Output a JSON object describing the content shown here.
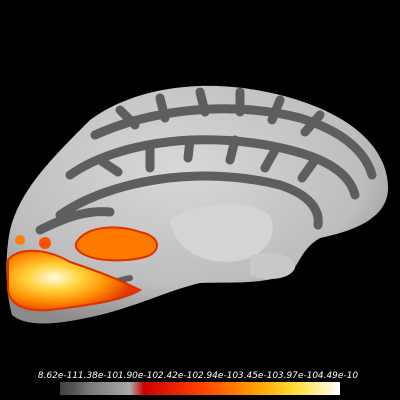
{
  "colorbar": {
    "ticks": [
      "8.62e-11",
      "1.38e-10",
      "1.90e-10",
      "2.42e-10",
      "2.94e-10",
      "3.45e-10",
      "3.97e-10",
      "4.49e-10"
    ]
  }
}
